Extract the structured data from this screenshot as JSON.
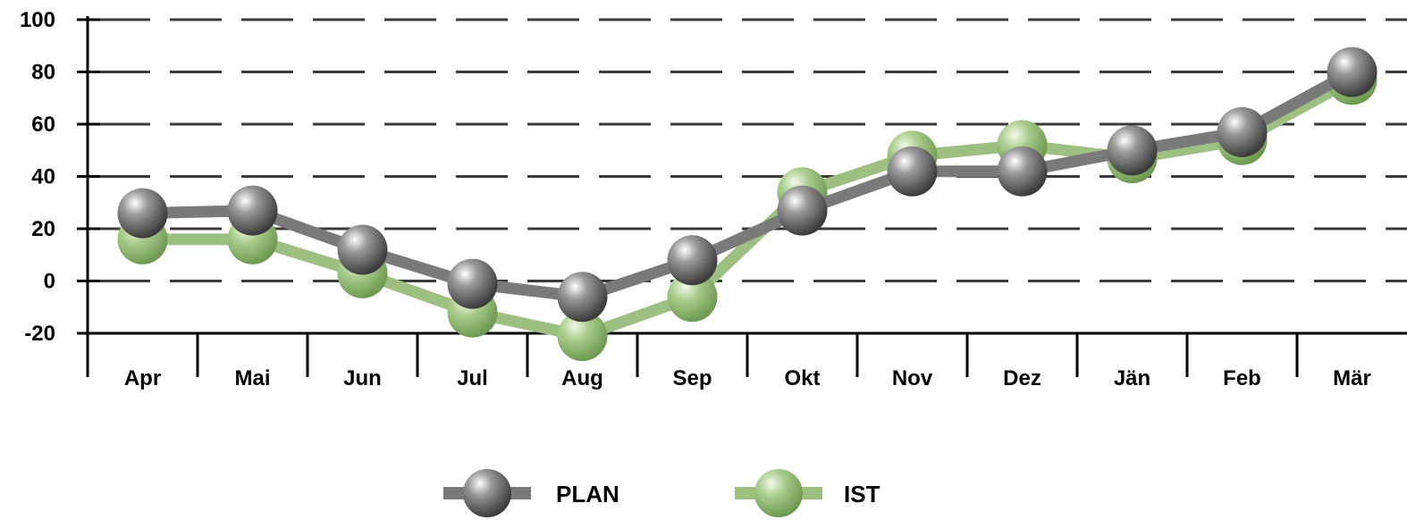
{
  "chart_data": {
    "type": "line",
    "categories": [
      "Apr",
      "Mai",
      "Jun",
      "Jul",
      "Aug",
      "Sep",
      "Okt",
      "Nov",
      "Dez",
      "Jän",
      "Feb",
      "Mär"
    ],
    "series": [
      {
        "name": "PLAN",
        "values": [
          28,
          29,
          14,
          1,
          -4,
          10,
          29,
          44,
          44,
          52,
          59,
          82
        ],
        "color": "#7a7a7a"
      },
      {
        "name": "IST",
        "values": [
          18,
          18,
          5,
          -10,
          -19,
          -4,
          36,
          50,
          54,
          49,
          56,
          79
        ],
        "color": "#9ebf82"
      }
    ],
    "ylim": [
      -20,
      100
    ],
    "yticks": [
      -20,
      0,
      20,
      40,
      60,
      80,
      100
    ],
    "grid": true,
    "legend_position": "bottom",
    "title": "",
    "xlabel": "",
    "ylabel": ""
  }
}
